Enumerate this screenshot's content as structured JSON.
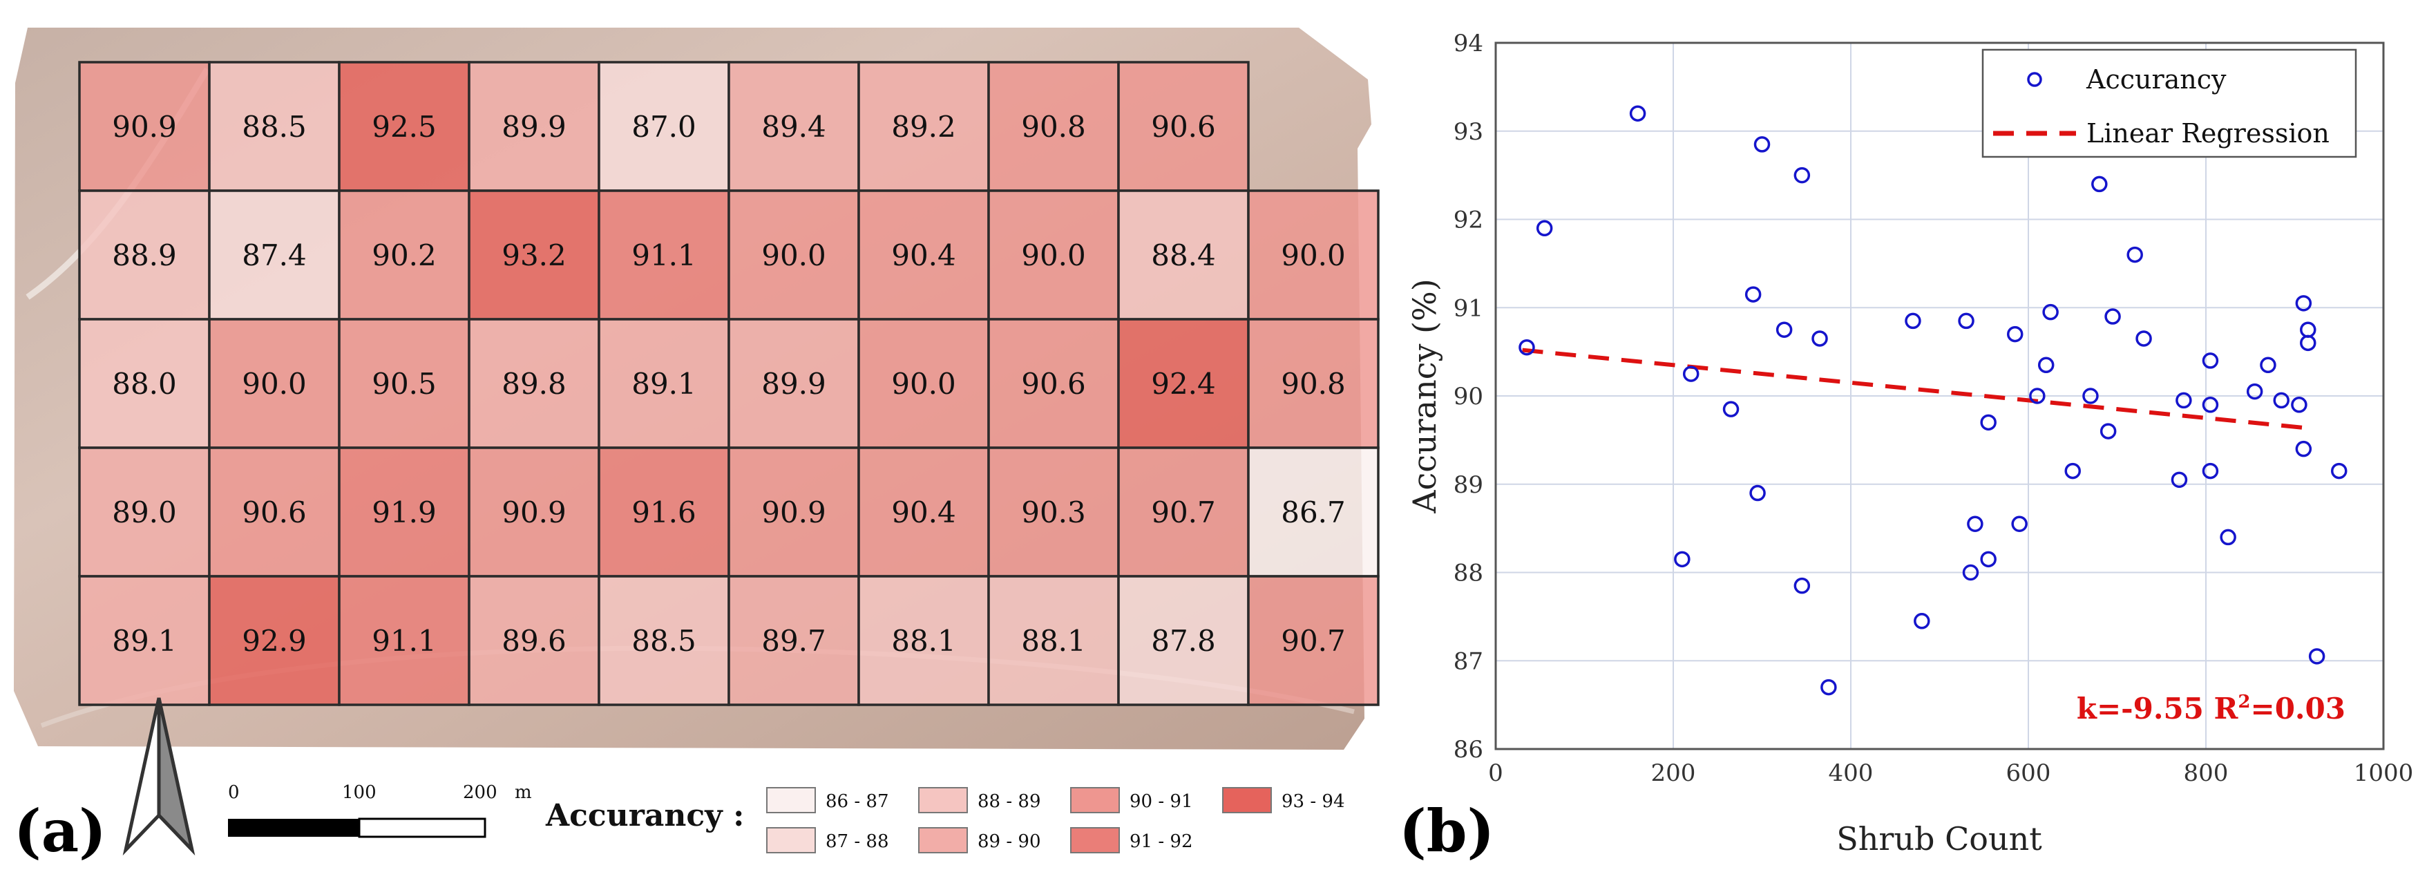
{
  "panel_a": {
    "label": "(a)",
    "grid_rows": [
      [
        90.9,
        88.5,
        92.5,
        89.9,
        87.0,
        89.4,
        89.2,
        90.8,
        90.6,
        null
      ],
      [
        88.9,
        87.4,
        90.2,
        93.2,
        91.1,
        90.0,
        90.4,
        90.0,
        88.4,
        90.0
      ],
      [
        88.0,
        90.0,
        90.5,
        89.8,
        89.1,
        89.9,
        90.0,
        90.6,
        92.4,
        90.8
      ],
      [
        89.0,
        90.6,
        91.9,
        90.9,
        91.6,
        90.9,
        90.4,
        90.3,
        90.7,
        86.7
      ],
      [
        89.1,
        92.9,
        91.1,
        89.6,
        88.5,
        89.7,
        88.1,
        88.1,
        87.8,
        90.7
      ]
    ],
    "grid_labels": [
      [
        "90.9",
        "88.5",
        "92.5",
        "89.9",
        "87.0",
        "89.4",
        "89.2",
        "90.8",
        "90.6",
        ""
      ],
      [
        "88.9",
        "87.4",
        "90.2",
        "93.2",
        "91.1",
        "90.0",
        "90.4",
        "90.0",
        "88.4",
        "90.0"
      ],
      [
        "88.0",
        "90.0",
        "90.5",
        "89.8",
        "89.1",
        "89.9",
        "90.0",
        "90.6",
        "92.4",
        "90.8"
      ],
      [
        "89.0",
        "90.6",
        "91.9",
        "90.9",
        "91.6",
        "90.9",
        "90.4",
        "90.3",
        "90.7",
        "86.7"
      ],
      [
        "89.1",
        "92.9",
        "91.1",
        "89.6",
        "88.5",
        "89.7",
        "88.1",
        "88.1",
        "87.8",
        "90.7"
      ]
    ],
    "scale_bar": {
      "ticks": [
        "0",
        "100",
        "200"
      ],
      "unit": "m"
    },
    "legend_title": "Accurancy :",
    "legend_items": [
      {
        "label": "86 - 87",
        "color": "#faf0ef"
      },
      {
        "label": "87 - 88",
        "color": "#f8dcd9"
      },
      {
        "label": "88 - 89",
        "color": "#f5c5c1"
      },
      {
        "label": "89 - 90",
        "color": "#f2ada8"
      },
      {
        "label": "90 - 91",
        "color": "#ee9690"
      },
      {
        "label": "91 - 92",
        "color": "#ea7e78"
      },
      {
        "label": "93 - 94",
        "color": "#e5635c"
      }
    ]
  },
  "panel_b": {
    "label": "(b)",
    "fit_annotation": "k=-9.55 R",
    "fit_sup": "2",
    "fit_r2": "=0.03",
    "legend_labels": [
      "Accurancy",
      "Linear Regression"
    ],
    "annotation_color": "#dd1111"
  },
  "chart_data": {
    "type": "scatter",
    "title": "",
    "xlabel": "Shrub Count",
    "ylabel": "Accurancy (%)",
    "xlim": [
      0,
      1000
    ],
    "ylim": [
      86,
      94
    ],
    "xticks": [
      0,
      200,
      400,
      600,
      800,
      1000
    ],
    "yticks": [
      86,
      87,
      88,
      89,
      90,
      91,
      92,
      93,
      94
    ],
    "grid": true,
    "legend_position": "top-right",
    "series": [
      {
        "name": "Accurancy",
        "marker": "open-circle",
        "color": "#1515cc",
        "points": [
          [
            35,
            90.55
          ],
          [
            55,
            91.9
          ],
          [
            160,
            93.2
          ],
          [
            210,
            88.15
          ],
          [
            220,
            90.25
          ],
          [
            265,
            89.85
          ],
          [
            290,
            91.15
          ],
          [
            295,
            88.9
          ],
          [
            300,
            92.85
          ],
          [
            325,
            90.75
          ],
          [
            345,
            92.5
          ],
          [
            345,
            87.85
          ],
          [
            365,
            90.65
          ],
          [
            375,
            86.7
          ],
          [
            470,
            90.85
          ],
          [
            480,
            87.45
          ],
          [
            530,
            90.85
          ],
          [
            535,
            88.0
          ],
          [
            540,
            88.55
          ],
          [
            555,
            89.7
          ],
          [
            555,
            88.15
          ],
          [
            585,
            90.7
          ],
          [
            590,
            88.55
          ],
          [
            610,
            90.0
          ],
          [
            620,
            90.35
          ],
          [
            625,
            90.95
          ],
          [
            650,
            89.15
          ],
          [
            670,
            90.0
          ],
          [
            680,
            92.4
          ],
          [
            690,
            89.6
          ],
          [
            695,
            90.9
          ],
          [
            720,
            91.6
          ],
          [
            730,
            90.65
          ],
          [
            770,
            89.05
          ],
          [
            775,
            89.95
          ],
          [
            805,
            90.4
          ],
          [
            805,
            89.9
          ],
          [
            805,
            89.15
          ],
          [
            825,
            88.4
          ],
          [
            855,
            90.05
          ],
          [
            870,
            90.35
          ],
          [
            885,
            89.95
          ],
          [
            905,
            89.9
          ],
          [
            910,
            89.4
          ],
          [
            910,
            91.05
          ],
          [
            915,
            90.75
          ],
          [
            915,
            90.6
          ],
          [
            925,
            87.05
          ],
          [
            950,
            89.15
          ]
        ]
      },
      {
        "name": "Linear Regression",
        "style": "dashed",
        "color": "#dd1111",
        "x": [
          30,
          920
        ],
        "y": [
          90.52,
          89.63
        ]
      }
    ]
  }
}
